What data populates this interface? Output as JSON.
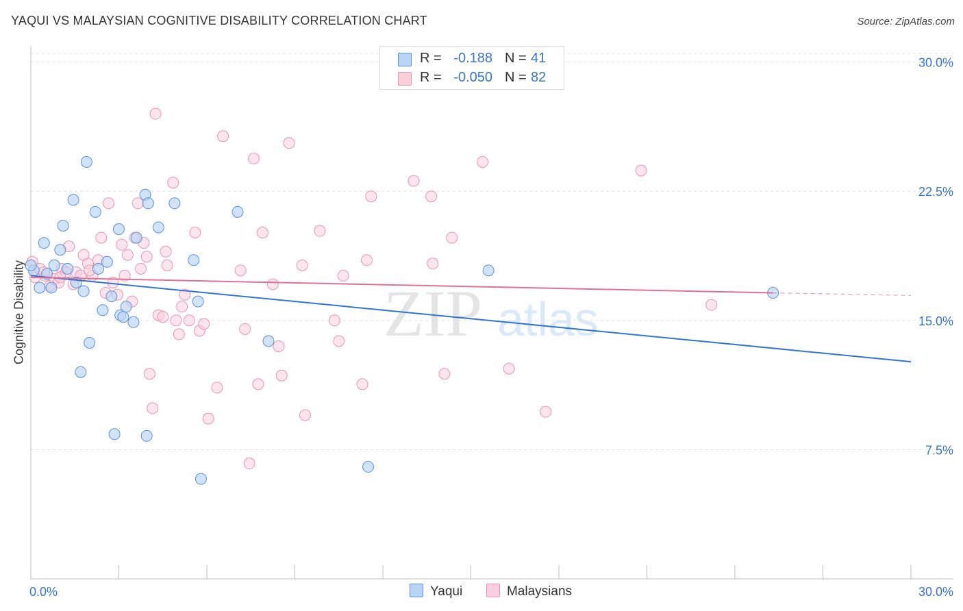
{
  "header": {
    "title": "YAQUI VS MALAYSIAN COGNITIVE DISABILITY CORRELATION CHART",
    "source": "Source: ZipAtlas.com"
  },
  "legend": {
    "rows": [
      {
        "r_label": "R =",
        "r_value": "-0.188",
        "n_label": "N =",
        "n_value": "41",
        "color": "#9dc3f0"
      },
      {
        "r_label": "R =",
        "r_value": "-0.050",
        "n_label": "N =",
        "n_value": "82",
        "color": "#f6b6cb"
      }
    ]
  },
  "bottom_legend": {
    "yaqui": "Yaqui",
    "malaysians": "Malaysians"
  },
  "watermark": {
    "zip": "ZIP",
    "atlas": "atlas"
  },
  "colors": {
    "yaqui_fill": "#b9d4f4",
    "yaqui_stroke": "#5b8fd8",
    "yaqui_line": "#2f74d0",
    "malay_fill": "#f9cfdc",
    "malay_stroke": "#e993b0",
    "malay_line": "#e0709a",
    "tick_text": "#3874cb",
    "grid": "#e3e3e3"
  },
  "chart_data": {
    "type": "scatter",
    "title": "YAQUI VS MALAYSIAN COGNITIVE DISABILITY CORRELATION CHART",
    "xlabel": "",
    "ylabel": "Cognitive Disability",
    "xlim": [
      0,
      30
    ],
    "ylim": [
      0,
      30.5
    ],
    "x_tick_labels": [
      "0.0%",
      "30.0%"
    ],
    "y_ticks": [
      7.5,
      15.0,
      22.5,
      30.0
    ],
    "y_tick_labels": [
      "7.5%",
      "15.0%",
      "22.5%",
      "30.0%"
    ],
    "grid": "horizontal dashed",
    "legend_position": "top-center",
    "series": [
      {
        "name": "Yaqui",
        "r": -0.188,
        "n": 41,
        "trend": {
          "x0": 0,
          "y0": 17.6,
          "x1": 30,
          "y1": 12.6
        },
        "points": [
          [
            0.1,
            17.9
          ],
          [
            0.3,
            16.9
          ],
          [
            0.45,
            19.5
          ],
          [
            0.55,
            17.7
          ],
          [
            0.7,
            16.9
          ],
          [
            0.8,
            18.2
          ],
          [
            1.0,
            19.1
          ],
          [
            1.1,
            20.5
          ],
          [
            1.25,
            18.0
          ],
          [
            1.45,
            22.0
          ],
          [
            1.55,
            17.2
          ],
          [
            1.7,
            12.0
          ],
          [
            1.8,
            16.7
          ],
          [
            1.9,
            24.2
          ],
          [
            2.0,
            13.7
          ],
          [
            2.2,
            21.3
          ],
          [
            2.3,
            18.0
          ],
          [
            2.45,
            15.6
          ],
          [
            2.6,
            18.4
          ],
          [
            2.75,
            16.4
          ],
          [
            2.85,
            8.4
          ],
          [
            3.0,
            20.3
          ],
          [
            3.05,
            15.3
          ],
          [
            3.15,
            15.2
          ],
          [
            3.25,
            15.8
          ],
          [
            3.5,
            14.9
          ],
          [
            3.6,
            19.8
          ],
          [
            3.9,
            22.3
          ],
          [
            3.95,
            8.3
          ],
          [
            4.0,
            21.8
          ],
          [
            4.35,
            20.4
          ],
          [
            4.9,
            21.8
          ],
          [
            5.55,
            18.5
          ],
          [
            5.7,
            16.1
          ],
          [
            5.8,
            5.8
          ],
          [
            7.05,
            21.3
          ],
          [
            8.1,
            13.8
          ],
          [
            11.5,
            6.5
          ],
          [
            15.6,
            17.9
          ],
          [
            25.3,
            16.6
          ],
          [
            0.0,
            18.2
          ]
        ]
      },
      {
        "name": "Malaysians",
        "r": -0.05,
        "n": 82,
        "trend": {
          "x0": 0,
          "y0": 17.5,
          "x1": 25.3,
          "y1": 16.6
        },
        "trend_dashed_to": {
          "x": 30,
          "y": 16.45
        },
        "points": [
          [
            0.15,
            17.5
          ],
          [
            0.3,
            18.0
          ],
          [
            0.5,
            17.6
          ],
          [
            0.65,
            17.0
          ],
          [
            0.8,
            17.4
          ],
          [
            0.95,
            17.2
          ],
          [
            1.05,
            18.0
          ],
          [
            1.2,
            17.8
          ],
          [
            1.3,
            19.3
          ],
          [
            1.45,
            17.1
          ],
          [
            1.55,
            17.8
          ],
          [
            1.7,
            17.6
          ],
          [
            1.8,
            18.8
          ],
          [
            1.95,
            18.3
          ],
          [
            2.1,
            17.6
          ],
          [
            2.3,
            18.5
          ],
          [
            2.4,
            19.8
          ],
          [
            2.55,
            16.6
          ],
          [
            2.65,
            21.8
          ],
          [
            2.8,
            17.2
          ],
          [
            2.95,
            16.5
          ],
          [
            3.1,
            19.4
          ],
          [
            3.2,
            17.6
          ],
          [
            3.3,
            18.8
          ],
          [
            3.45,
            16.1
          ],
          [
            3.55,
            19.8
          ],
          [
            3.65,
            21.8
          ],
          [
            3.75,
            18.0
          ],
          [
            3.85,
            19.5
          ],
          [
            3.95,
            18.7
          ],
          [
            4.05,
            11.9
          ],
          [
            4.15,
            9.9
          ],
          [
            4.25,
            27.0
          ],
          [
            4.35,
            15.3
          ],
          [
            4.5,
            15.2
          ],
          [
            4.6,
            19.0
          ],
          [
            4.65,
            18.2
          ],
          [
            4.85,
            23.0
          ],
          [
            4.95,
            15.0
          ],
          [
            5.05,
            14.2
          ],
          [
            5.15,
            15.8
          ],
          [
            5.25,
            16.5
          ],
          [
            5.4,
            15.0
          ],
          [
            5.6,
            20.1
          ],
          [
            5.75,
            14.4
          ],
          [
            5.9,
            14.8
          ],
          [
            6.05,
            9.3
          ],
          [
            6.35,
            11.1
          ],
          [
            6.55,
            25.7
          ],
          [
            7.15,
            17.9
          ],
          [
            7.3,
            14.5
          ],
          [
            7.45,
            6.7
          ],
          [
            7.6,
            24.4
          ],
          [
            7.75,
            11.3
          ],
          [
            7.9,
            20.1
          ],
          [
            8.25,
            17.1
          ],
          [
            8.45,
            13.5
          ],
          [
            8.55,
            11.8
          ],
          [
            8.8,
            25.3
          ],
          [
            9.25,
            18.2
          ],
          [
            9.35,
            9.5
          ],
          [
            9.85,
            20.2
          ],
          [
            10.35,
            15.0
          ],
          [
            10.5,
            13.8
          ],
          [
            10.65,
            17.6
          ],
          [
            11.3,
            11.3
          ],
          [
            11.45,
            18.5
          ],
          [
            11.6,
            22.2
          ],
          [
            13.05,
            23.1
          ],
          [
            13.65,
            22.2
          ],
          [
            13.7,
            18.3
          ],
          [
            14.1,
            11.9
          ],
          [
            14.35,
            19.8
          ],
          [
            15.4,
            24.2
          ],
          [
            16.3,
            12.2
          ],
          [
            17.55,
            9.7
          ],
          [
            20.8,
            23.7
          ],
          [
            23.2,
            15.9
          ],
          [
            0.05,
            18.4
          ],
          [
            0.45,
            17.8
          ],
          [
            1.0,
            17.5
          ],
          [
            2.0,
            17.9
          ]
        ]
      }
    ]
  }
}
